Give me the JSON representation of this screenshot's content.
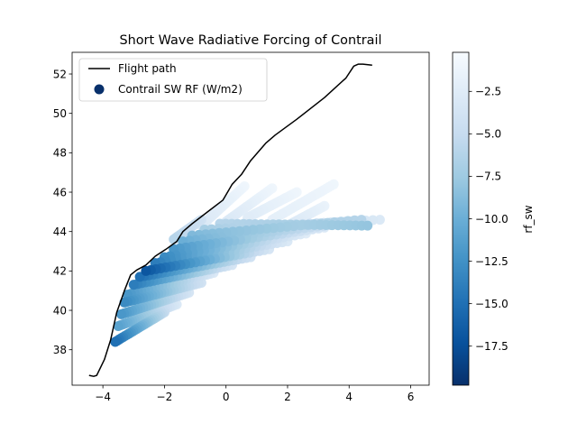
{
  "chart_data": {
    "type": "scatter",
    "title": "Short Wave Radiative Forcing of Contrail",
    "xlabel": "",
    "ylabel": "",
    "xlim": [
      -5.0,
      6.6
    ],
    "ylim": [
      36.2,
      53.1
    ],
    "xticks": [
      -4,
      -2,
      0,
      2,
      4,
      6
    ],
    "xtick_labels": [
      "−4",
      "−2",
      "0",
      "2",
      "4",
      "6"
    ],
    "yticks": [
      38,
      40,
      42,
      44,
      46,
      48,
      50,
      52
    ],
    "ytick_labels": [
      "38",
      "40",
      "42",
      "44",
      "46",
      "48",
      "50",
      "52"
    ],
    "grid": false,
    "legend": {
      "placement": "top-left",
      "entries": [
        {
          "label": "Flight path",
          "kind": "line",
          "color": "#000000"
        },
        {
          "label": "Contrail SW RF (W/m2)",
          "kind": "marker",
          "color": "#08306b"
        }
      ]
    },
    "flight_path": {
      "name": "Flight path",
      "x": [
        -4.45,
        -4.3,
        -4.2,
        -3.95,
        -3.75,
        -3.55,
        -3.3,
        -3.1,
        -2.9,
        -2.6,
        -2.3,
        -1.95,
        -1.6,
        -1.4,
        -1.1,
        -0.6,
        -0.1,
        0.2,
        0.5,
        0.8,
        1.3,
        1.6,
        2.3,
        3.2,
        3.9,
        4.15,
        4.3,
        4.45,
        4.75
      ],
      "y": [
        36.7,
        36.65,
        36.7,
        37.5,
        38.5,
        39.9,
        41.0,
        41.8,
        42.05,
        42.3,
        42.75,
        43.1,
        43.5,
        44.0,
        44.4,
        45.0,
        45.6,
        46.4,
        46.9,
        47.6,
        48.5,
        48.9,
        49.7,
        50.8,
        51.8,
        52.4,
        52.5,
        52.5,
        52.45
      ]
    },
    "contrail_plumes": {
      "name": "Contrail SW RF (W/m2)",
      "colorbar_label": "rf_sw",
      "colormap": "Blues_r",
      "clim": [
        -19.8,
        -0.2
      ],
      "colorbar_ticks": [
        -2.5,
        -5.0,
        -7.5,
        -10.0,
        -12.5,
        -15.0,
        -17.5
      ],
      "colorbar_tick_labels": [
        "−2.5",
        "−5.0",
        "−7.5",
        "−10.0",
        "−12.5",
        "−15.0",
        "−17.5"
      ],
      "streaks": [
        {
          "x0": -3.6,
          "y0": 38.4,
          "x1": -2.0,
          "y1": 39.9,
          "rf0": -15.0,
          "rf1": -5.0
        },
        {
          "x0": -3.5,
          "y0": 39.2,
          "x1": -1.6,
          "y1": 40.3,
          "rf0": -11.0,
          "rf1": -3.0
        },
        {
          "x0": -3.4,
          "y0": 39.8,
          "x1": -1.2,
          "y1": 40.9,
          "rf0": -12.0,
          "rf1": -3.5
        },
        {
          "x0": -3.3,
          "y0": 40.4,
          "x1": -0.8,
          "y1": 41.4,
          "rf0": -13.0,
          "rf1": -4.0
        },
        {
          "x0": -3.2,
          "y0": 40.8,
          "x1": -0.4,
          "y1": 41.9,
          "rf0": -12.0,
          "rf1": -3.0
        },
        {
          "x0": -3.0,
          "y0": 41.3,
          "x1": 0.2,
          "y1": 42.3,
          "rf0": -14.0,
          "rf1": -3.5
        },
        {
          "x0": -2.8,
          "y0": 41.7,
          "x1": 0.8,
          "y1": 42.7,
          "rf0": -15.0,
          "rf1": -4.0
        },
        {
          "x0": -2.6,
          "y0": 42.0,
          "x1": 1.4,
          "y1": 43.1,
          "rf0": -17.0,
          "rf1": -3.5
        },
        {
          "x0": -2.3,
          "y0": 42.4,
          "x1": 2.0,
          "y1": 43.5,
          "rf0": -14.0,
          "rf1": -3.0
        },
        {
          "x0": -2.0,
          "y0": 42.7,
          "x1": 2.6,
          "y1": 43.9,
          "rf0": -13.0,
          "rf1": -2.5
        },
        {
          "x0": -1.7,
          "y0": 43.1,
          "x1": 3.2,
          "y1": 44.2,
          "rf0": -12.0,
          "rf1": -3.0
        },
        {
          "x0": -1.4,
          "y0": 43.5,
          "x1": 3.8,
          "y1": 44.4,
          "rf0": -10.0,
          "rf1": -4.0
        },
        {
          "x0": -1.1,
          "y0": 43.8,
          "x1": 4.4,
          "y1": 44.6,
          "rf0": -9.0,
          "rf1": -6.0
        },
        {
          "x0": -0.7,
          "y0": 44.1,
          "x1": 5.0,
          "y1": 44.6,
          "rf0": -7.0,
          "rf1": -3.0
        },
        {
          "x0": -0.2,
          "y0": 44.4,
          "x1": 4.6,
          "y1": 44.3,
          "rf0": -6.0,
          "rf1": -8.0
        },
        {
          "x0": -1.7,
          "y0": 43.6,
          "x1": -0.8,
          "y1": 44.6,
          "rf0": -6.0,
          "rf1": -4.0
        },
        {
          "x0": -0.8,
          "y0": 44.3,
          "x1": 0.6,
          "y1": 46.3,
          "rf0": -3.0,
          "rf1": -1.0
        },
        {
          "x0": 0.0,
          "y0": 44.5,
          "x1": 1.5,
          "y1": 46.2,
          "rf0": -3.0,
          "rf1": -1.0
        },
        {
          "x0": 0.7,
          "y0": 44.7,
          "x1": 2.3,
          "y1": 46.0,
          "rf0": -2.5,
          "rf1": -1.0
        },
        {
          "x0": 1.5,
          "y0": 44.6,
          "x1": 3.5,
          "y1": 46.4,
          "rf0": -2.0,
          "rf1": -1.0
        },
        {
          "x0": 2.0,
          "y0": 44.3,
          "x1": 3.2,
          "y1": 45.3,
          "rf0": -3.0,
          "rf1": -1.5
        }
      ]
    }
  }
}
